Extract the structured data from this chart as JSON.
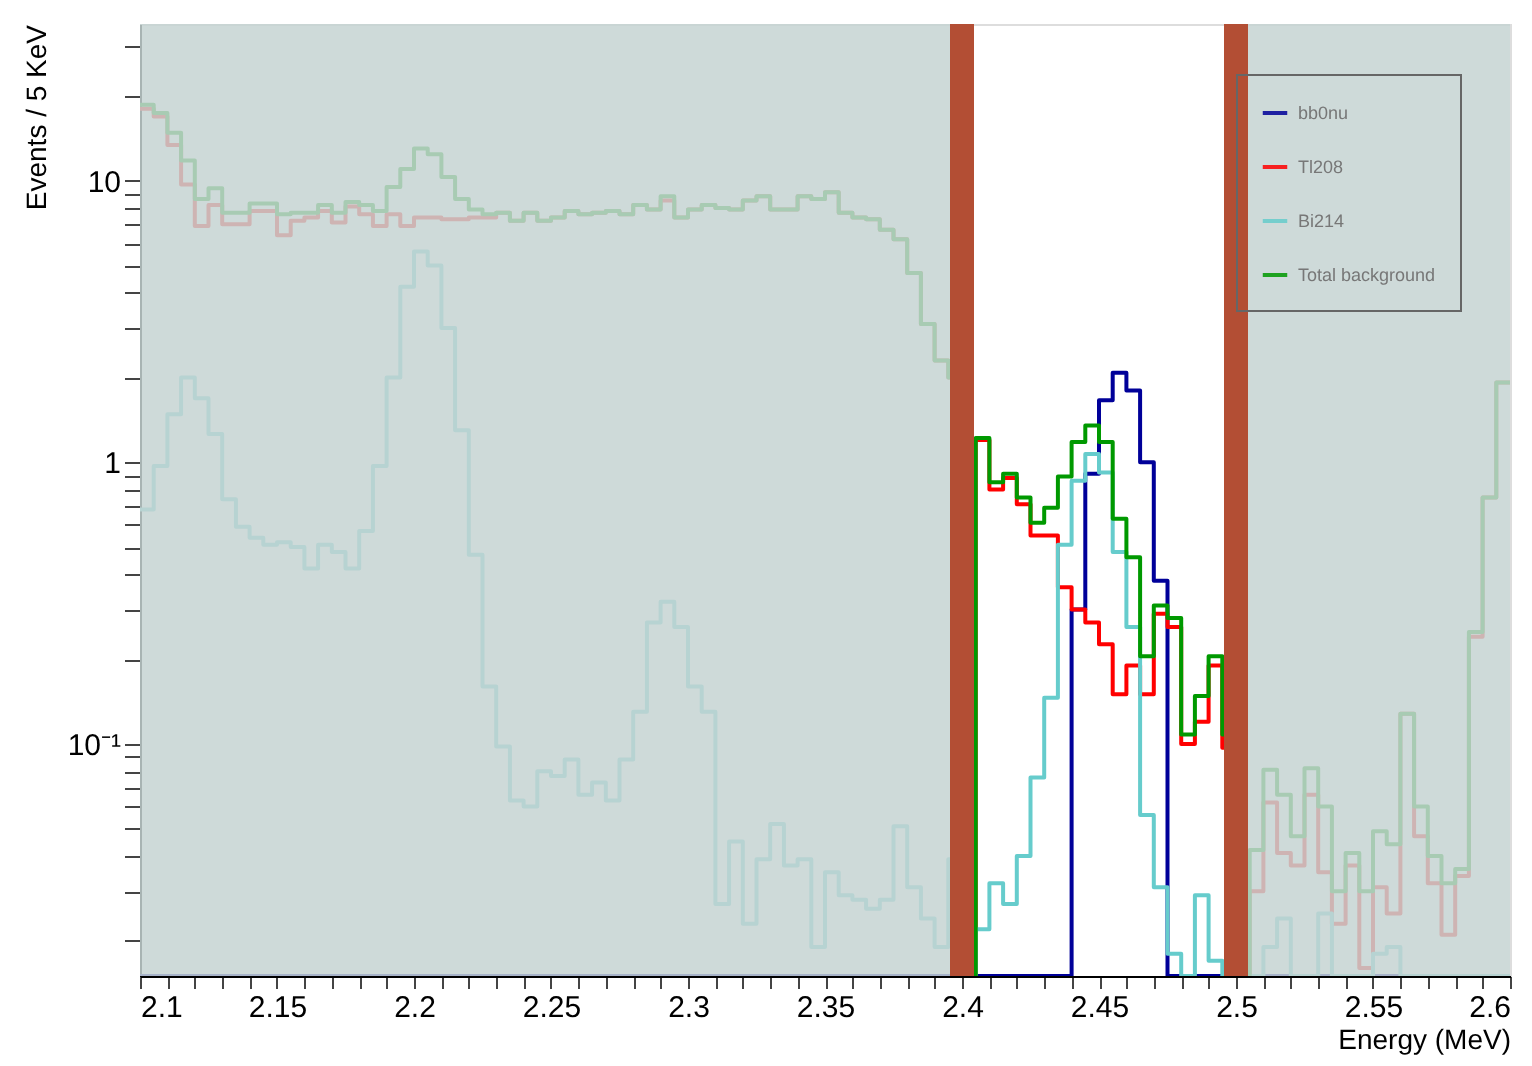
{
  "chart_data": {
    "type": "histogram",
    "xlabel": "Energy (MeV)",
    "ylabel": "Events / 5 KeV",
    "log": "y",
    "legend": "top right",
    "grid": false,
    "bins": [
      2.1,
      2.105,
      2.11,
      2.115,
      2.12,
      2.125,
      2.13,
      2.135,
      2.14,
      2.145,
      2.15,
      2.155,
      2.16,
      2.165,
      2.17,
      2.175,
      2.18,
      2.185,
      2.19,
      2.195,
      2.2,
      2.205,
      2.21,
      2.215,
      2.22,
      2.225,
      2.23,
      2.235,
      2.24,
      2.245,
      2.25,
      2.255,
      2.26,
      2.265,
      2.27,
      2.275,
      2.28,
      2.285,
      2.29,
      2.295,
      2.3,
      2.305,
      2.31,
      2.315,
      2.32,
      2.325,
      2.33,
      2.335,
      2.34,
      2.345,
      2.35,
      2.355,
      2.36,
      2.365,
      2.37,
      2.375,
      2.38,
      2.385,
      2.39,
      2.395,
      2.4,
      2.405,
      2.41,
      2.415,
      2.42,
      2.425,
      2.43,
      2.435,
      2.44,
      2.445,
      2.45,
      2.455,
      2.46,
      2.465,
      2.47,
      2.475,
      2.48,
      2.485,
      2.49,
      2.495,
      2.5,
      2.505,
      2.51,
      2.515,
      2.52,
      2.525,
      2.53,
      2.535,
      2.54,
      2.545,
      2.55,
      2.555,
      2.56,
      2.565,
      2.57,
      2.575,
      2.58,
      2.585,
      2.59,
      2.595,
      2.6
    ],
    "xlim": [
      2.1,
      2.6
    ],
    "xticks": [
      2.1,
      {
        "value": 2.11,
        "label": null
      },
      {
        "value": 2.12,
        "label": null
      },
      {
        "value": 2.13,
        "label": null
      },
      {
        "value": 2.14,
        "label": null
      },
      2.15,
      {
        "value": 2.16,
        "label": null
      },
      {
        "value": 2.17,
        "label": null
      },
      {
        "value": 2.18,
        "label": null
      },
      {
        "value": 2.19,
        "label": null
      },
      2.2,
      {
        "value": 2.21,
        "label": null
      },
      {
        "value": 2.22,
        "label": null
      },
      {
        "value": 2.23,
        "label": null
      },
      {
        "value": 2.24,
        "label": null
      },
      2.25,
      {
        "value": 2.26,
        "label": null
      },
      {
        "value": 2.27,
        "label": null
      },
      {
        "value": 2.28,
        "label": null
      },
      {
        "value": 2.29,
        "label": null
      },
      2.3,
      {
        "value": 2.31,
        "label": null
      },
      {
        "value": 2.32,
        "label": null
      },
      {
        "value": 2.33,
        "label": null
      },
      {
        "value": 2.34,
        "label": null
      },
      2.35,
      {
        "value": 2.36,
        "label": null
      },
      {
        "value": 2.37,
        "label": null
      },
      {
        "value": 2.38,
        "label": null
      },
      {
        "value": 2.39,
        "label": null
      },
      2.4,
      {
        "value": 2.41,
        "label": null
      },
      {
        "value": 2.42,
        "label": null
      },
      {
        "value": 2.43,
        "label": null
      },
      {
        "value": 2.44,
        "label": null
      },
      2.45,
      {
        "value": 2.46,
        "label": null
      },
      {
        "value": 2.47,
        "label": null
      },
      {
        "value": 2.48,
        "label": null
      },
      {
        "value": 2.49,
        "label": null
      },
      2.5,
      {
        "value": 2.51,
        "label": null
      },
      {
        "value": 2.52,
        "label": null
      },
      {
        "value": 2.53,
        "label": null
      },
      {
        "value": 2.54,
        "label": null
      },
      2.55,
      {
        "value": 2.56,
        "label": null
      },
      {
        "value": 2.57,
        "label": null
      },
      {
        "value": 2.58,
        "label": null
      },
      {
        "value": 2.59,
        "label": null
      },
      2.6
    ],
    "ylim": [
      0.015,
      36
    ],
    "yticks": [
      {
        "value": 0.02,
        "label": null
      },
      {
        "value": 0.03,
        "label": null
      },
      {
        "value": 0.04,
        "label": null
      },
      {
        "value": 0.05,
        "label": null
      },
      {
        "value": 0.06,
        "label": null
      },
      {
        "value": 0.07,
        "label": null
      },
      {
        "value": 0.08,
        "label": null
      },
      {
        "value": 0.09,
        "label": null
      },
      {
        "value": 0.1,
        "label": "10⁻¹"
      },
      {
        "value": 0.2,
        "label": null
      },
      {
        "value": 0.3,
        "label": null
      },
      {
        "value": 0.4,
        "label": null
      },
      {
        "value": 0.5,
        "label": null
      },
      {
        "value": 0.6,
        "label": null
      },
      {
        "value": 0.7,
        "label": null
      },
      {
        "value": 0.8,
        "label": null
      },
      {
        "value": 0.9,
        "label": null
      },
      1,
      {
        "value": 2,
        "label": null
      },
      {
        "value": 3,
        "label": null
      },
      {
        "value": 4,
        "label": null
      },
      {
        "value": 5,
        "label": null
      },
      {
        "value": 6,
        "label": null
      },
      {
        "value": 7,
        "label": null
      },
      {
        "value": 8,
        "label": null
      },
      {
        "value": 9,
        "label": null
      },
      10,
      {
        "value": 20,
        "label": null
      },
      {
        "value": 30,
        "label": null
      }
    ],
    "series": [
      {
        "name": "bb0nu",
        "color": "#000099",
        "values": [
          null,
          null,
          null,
          null,
          null,
          null,
          null,
          null,
          null,
          null,
          null,
          null,
          null,
          null,
          null,
          null,
          null,
          null,
          null,
          null,
          null,
          null,
          null,
          null,
          null,
          null,
          null,
          null,
          null,
          null,
          null,
          null,
          null,
          null,
          null,
          null,
          null,
          null,
          null,
          null,
          null,
          null,
          null,
          null,
          null,
          null,
          null,
          null,
          null,
          null,
          null,
          null,
          null,
          null,
          null,
          null,
          null,
          null,
          null,
          null,
          null,
          null,
          null,
          null,
          null,
          null,
          null,
          null,
          0.3,
          0.91,
          1.66,
          2.08,
          1.8,
          1.0,
          0.38,
          null,
          null,
          null,
          null,
          null,
          null,
          null,
          null,
          null,
          null,
          null,
          null,
          null,
          null,
          null,
          null,
          null,
          null,
          null,
          null,
          null,
          null,
          null,
          null,
          null
        ]
      },
      {
        "name": "Tl208",
        "color": "#ff0000",
        "values": [
          18,
          16.9,
          13.4,
          9.7,
          6.9,
          8.2,
          7.0,
          7.0,
          7.8,
          7.8,
          6.4,
          7.2,
          7.4,
          7.8,
          7.1,
          8.1,
          7.6,
          6.9,
          7.6,
          6.9,
          7.4,
          7.4,
          7.3,
          7.3,
          7.4,
          7.4,
          7.7,
          7.2,
          7.7,
          7.2,
          7.4,
          7.8,
          7.6,
          7.7,
          7.8,
          7.6,
          8.2,
          7.9,
          8.5,
          7.4,
          7.9,
          8.2,
          8.0,
          7.9,
          8.5,
          8.8,
          7.9,
          7.9,
          8.8,
          8.6,
          9.1,
          7.7,
          7.4,
          7.3,
          6.7,
          6.2,
          4.7,
          3.1,
          2.3,
          2.0,
          null,
          1.2,
          0.8,
          0.88,
          0.71,
          0.55,
          0.55,
          0.36,
          0.3,
          0.27,
          0.226,
          0.15,
          0.19,
          0.15,
          0.29,
          0.26,
          0.1,
          0.12,
          0.19,
          0.097,
          null,
          0.03,
          0.062,
          0.041,
          0.037,
          0.066,
          0.035,
          0.023,
          0.037,
          0.016,
          0.031,
          0.025,
          0.128,
          0.047,
          0.032,
          0.021,
          0.034,
          0.24,
          0.75,
          1.92
        ]
      },
      {
        "name": "Bi214",
        "color": "#66cccc",
        "values": [
          0.68,
          0.97,
          1.48,
          2.0,
          1.69,
          1.26,
          0.74,
          0.59,
          0.54,
          0.51,
          0.52,
          0.5,
          0.42,
          0.51,
          0.48,
          0.42,
          0.57,
          0.97,
          2.0,
          4.2,
          5.6,
          5.0,
          3.0,
          1.3,
          0.47,
          0.16,
          0.098,
          0.063,
          0.06,
          0.08,
          0.077,
          0.088,
          0.066,
          0.073,
          0.063,
          0.088,
          0.13,
          0.27,
          0.32,
          0.26,
          0.16,
          0.13,
          0.027,
          0.045,
          0.023,
          0.039,
          0.052,
          0.037,
          0.039,
          0.019,
          0.035,
          0.029,
          0.028,
          0.026,
          0.028,
          0.051,
          0.031,
          0.024,
          0.019,
          0.039,
          null,
          0.022,
          0.032,
          0.027,
          0.04,
          0.076,
          0.146,
          0.51,
          0.86,
          1.07,
          0.92,
          0.48,
          0.26,
          0.056,
          0.031,
          0.018,
          null,
          0.029,
          0.017,
          null,
          null,
          null,
          0.019,
          0.024,
          null,
          null,
          0.025,
          null,
          null,
          null,
          0.018,
          0.019,
          null,
          null,
          null,
          null,
          null,
          null,
          null,
          null
        ]
      },
      {
        "name": "Total background",
        "color": "#009900",
        "values": [
          18.6,
          17.4,
          14.8,
          11.8,
          8.6,
          9.4,
          7.7,
          7.7,
          8.3,
          8.3,
          7.6,
          7.7,
          7.7,
          8.2,
          7.7,
          8.4,
          8.2,
          7.8,
          9.5,
          11.0,
          13.0,
          12.4,
          10.3,
          8.6,
          7.9,
          7.6,
          7.7,
          7.2,
          7.7,
          7.2,
          7.4,
          7.8,
          7.6,
          7.7,
          7.8,
          7.6,
          8.2,
          7.9,
          8.8,
          7.4,
          7.9,
          8.2,
          8.0,
          7.9,
          8.5,
          8.8,
          7.9,
          7.9,
          8.8,
          8.6,
          9.1,
          7.7,
          7.4,
          7.3,
          6.7,
          6.2,
          4.7,
          3.1,
          2.3,
          2.0,
          null,
          1.22,
          0.85,
          0.91,
          0.75,
          0.61,
          0.69,
          0.89,
          1.18,
          1.35,
          1.18,
          0.63,
          0.46,
          0.205,
          0.31,
          0.28,
          0.108,
          0.148,
          0.205,
          0.108,
          null,
          0.042,
          0.081,
          0.066,
          0.047,
          0.082,
          0.06,
          0.03,
          0.041,
          0.03,
          0.049,
          0.044,
          0.128,
          0.06,
          0.04,
          0.032,
          0.036,
          0.25,
          0.75,
          1.92
        ]
      }
    ],
    "bands": [
      {
        "axis": "x",
        "from": 2.1,
        "to": 2.4,
        "color": "#c5d3d2"
      },
      {
        "axis": "x",
        "from": 2.5,
        "to": 2.6,
        "color": "#c5d3d2"
      }
    ],
    "ref_lines": [
      {
        "axis": "x",
        "value": 2.4,
        "color": "#b34e34"
      },
      {
        "axis": "x",
        "value": 2.5,
        "color": "#b34e34"
      }
    ]
  }
}
